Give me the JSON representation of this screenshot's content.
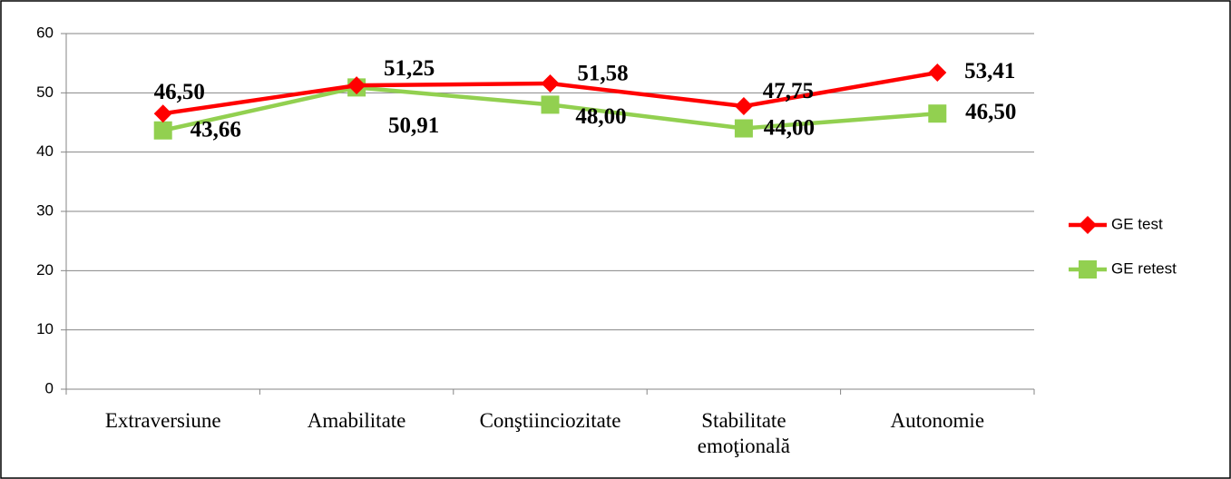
{
  "chart_data": {
    "type": "line",
    "categories": [
      "Extraversiune",
      "Amabilitate",
      "Conştiinciozitate",
      "Stabilitate emoţională",
      "Autonomie"
    ],
    "series": [
      {
        "name": "GE test",
        "color": "#ff0000",
        "marker": "diamond",
        "values": [
          46.5,
          51.25,
          51.58,
          47.75,
          53.41
        ],
        "value_labels": [
          "46,50",
          "51,25",
          "51,58",
          "47,75",
          "53,41"
        ]
      },
      {
        "name": "GE retest",
        "color": "#92d050",
        "marker": "square",
        "values": [
          43.66,
          50.91,
          48.0,
          44.0,
          46.5
        ],
        "value_labels": [
          "43,66",
          "50,91",
          "48,00",
          "44,00",
          "46,50"
        ]
      }
    ],
    "ylim": [
      0,
      60
    ],
    "yticks": [
      0,
      10,
      20,
      30,
      40,
      50,
      60
    ],
    "grid": true,
    "legend": "right"
  }
}
